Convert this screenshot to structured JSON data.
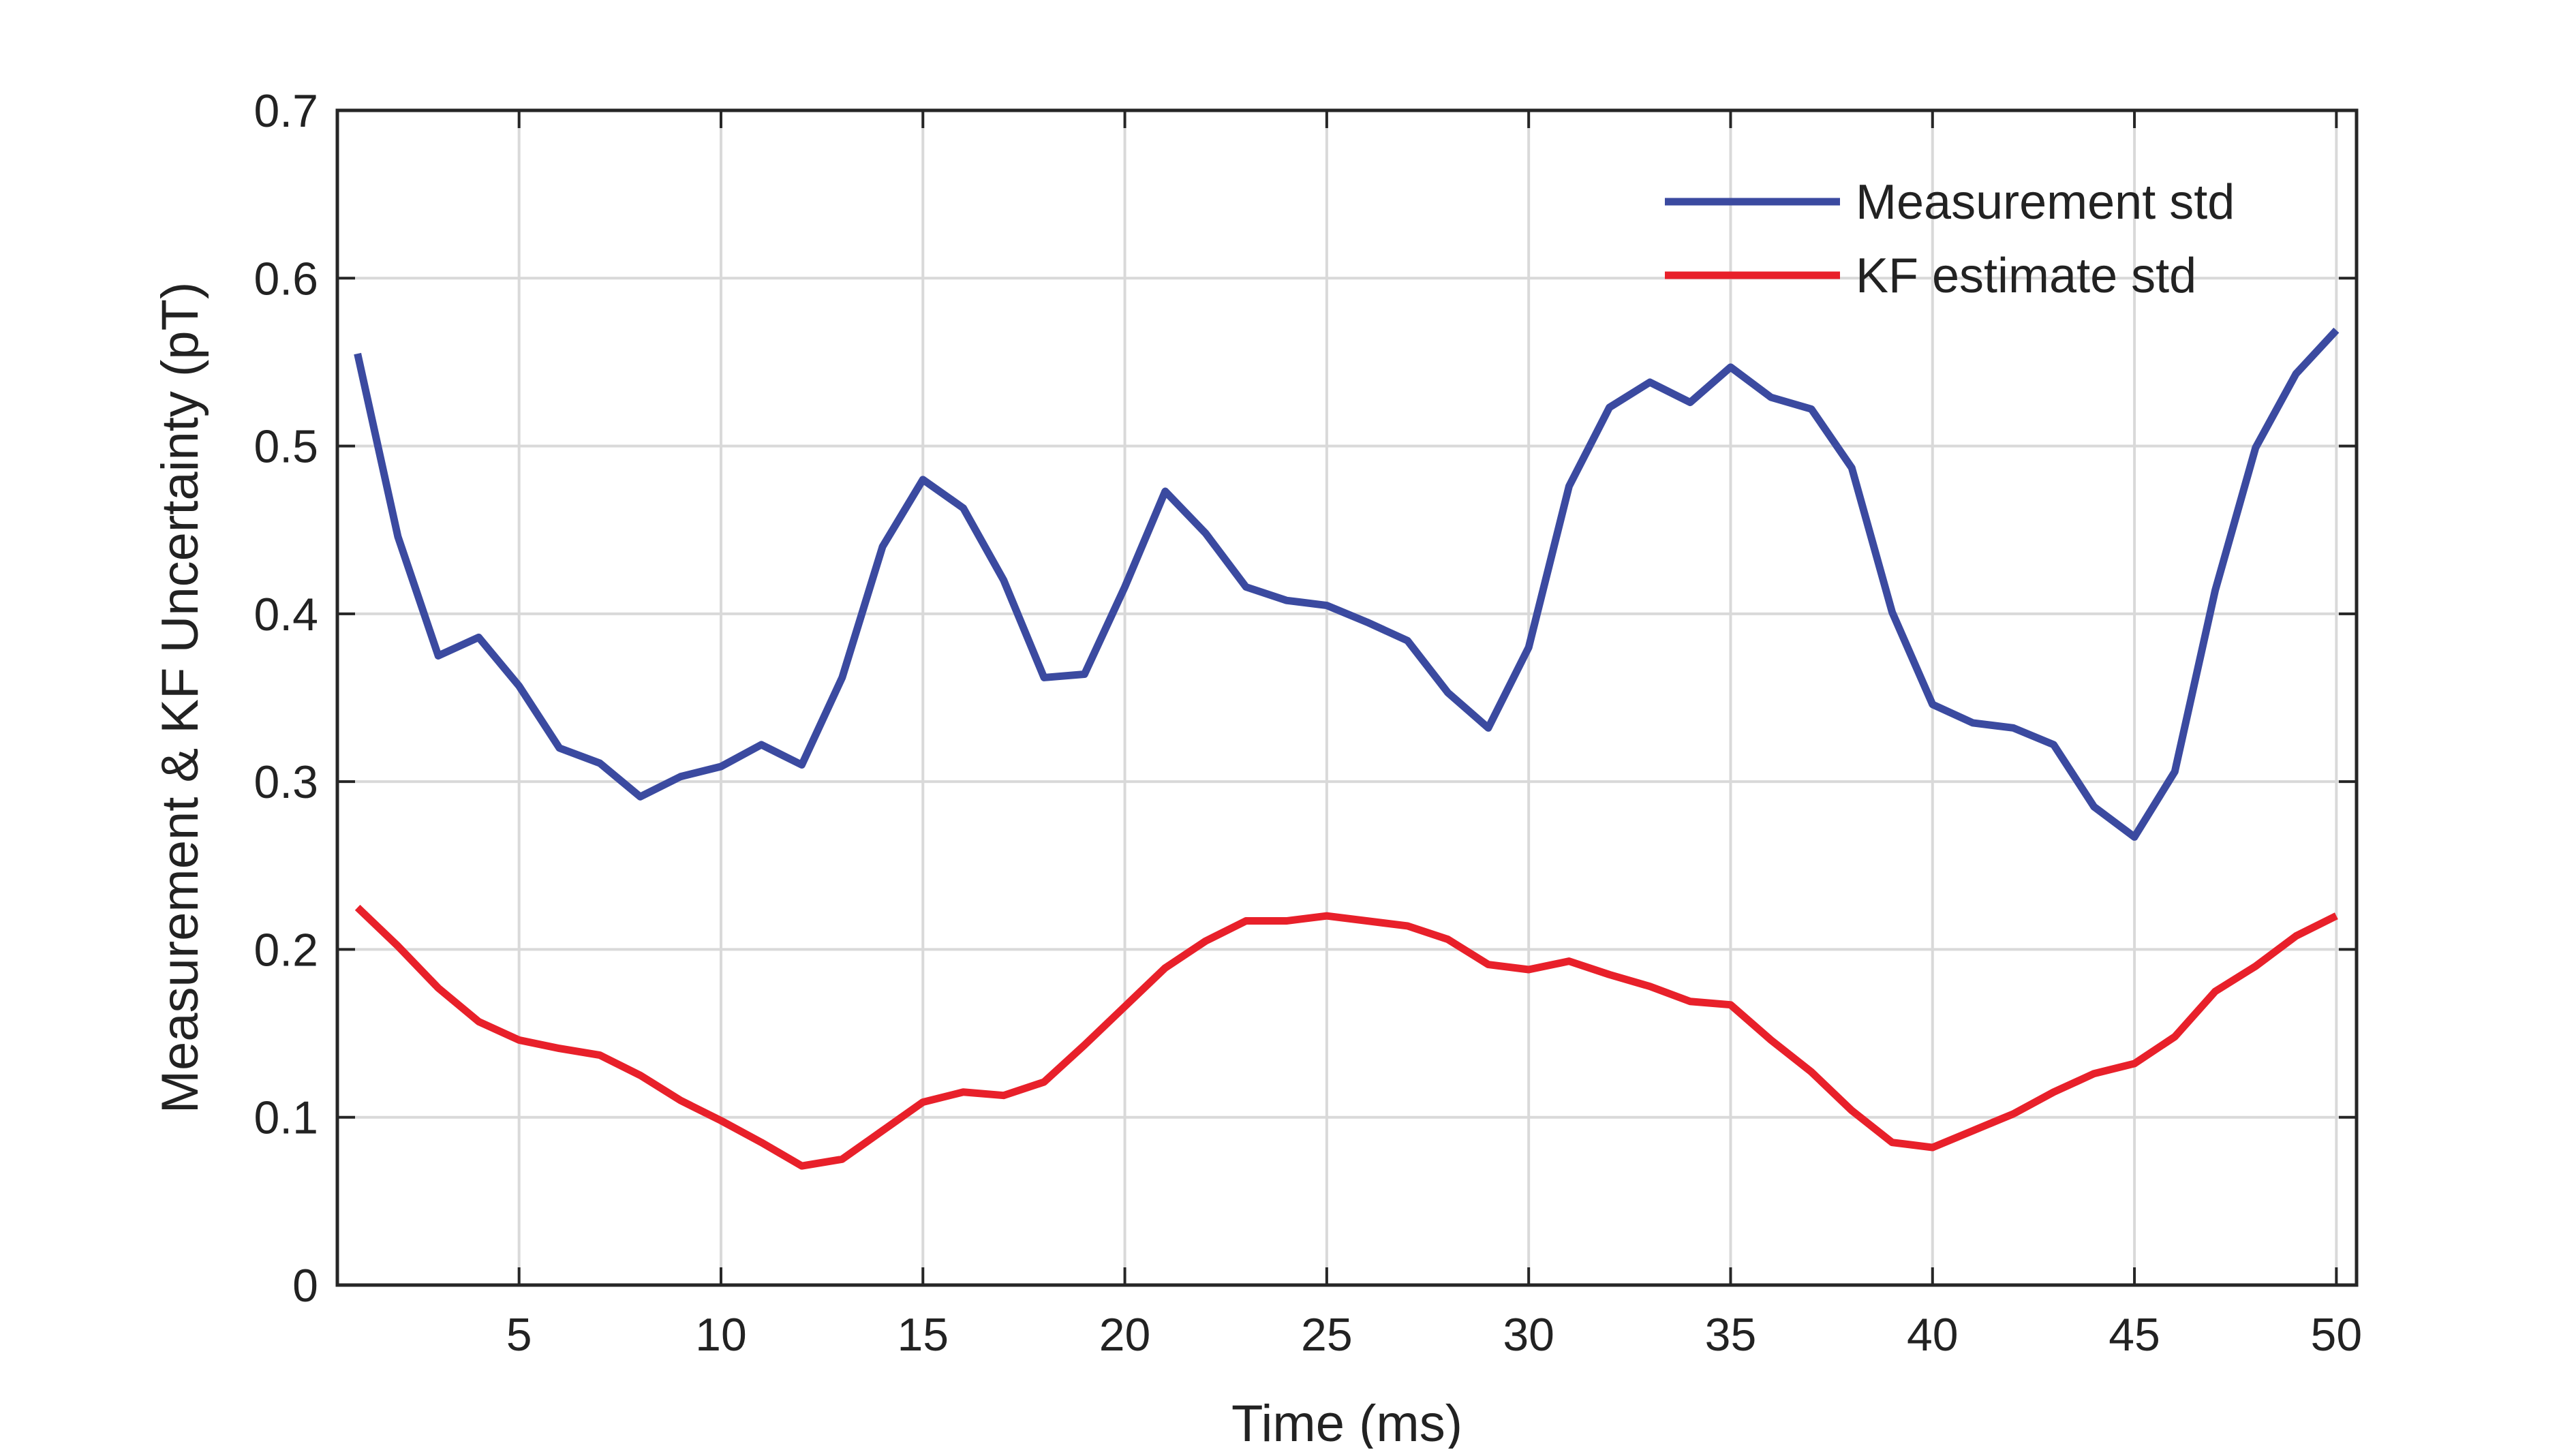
{
  "chart_data": {
    "type": "line",
    "title": "",
    "xlabel": "Time (ms)",
    "ylabel": "Measurement & KF Uncertainty  (pT)",
    "xlim": [
      0.5,
      50.5
    ],
    "ylim": [
      0,
      0.7
    ],
    "xticks": [
      5,
      10,
      15,
      20,
      25,
      30,
      35,
      40,
      45,
      50
    ],
    "xtick_labels": [
      "5",
      "10",
      "15",
      "20",
      "25",
      "30",
      "35",
      "40",
      "45",
      "50"
    ],
    "yticks": [
      0,
      0.1,
      0.2,
      0.3,
      0.4,
      0.5,
      0.6,
      0.7
    ],
    "ytick_labels": [
      "0",
      "0.1",
      "0.2",
      "0.3",
      "0.4",
      "0.5",
      "0.6",
      "0.7"
    ],
    "grid": true,
    "legend_position": "top-right",
    "x": [
      1,
      2,
      3,
      4,
      5,
      6,
      7,
      8,
      9,
      10,
      11,
      12,
      13,
      14,
      15,
      16,
      17,
      18,
      19,
      20,
      21,
      22,
      23,
      24,
      25,
      26,
      27,
      28,
      29,
      30,
      31,
      32,
      33,
      34,
      35,
      36,
      37,
      38,
      39,
      40,
      41,
      42,
      43,
      44,
      45,
      46,
      47,
      48,
      49,
      50
    ],
    "series": [
      {
        "name": "Measurement std",
        "color": "#3b4aa0",
        "values": [
          0.555,
          0.446,
          0.375,
          0.386,
          0.357,
          0.32,
          0.311,
          0.291,
          0.303,
          0.309,
          0.322,
          0.31,
          0.362,
          0.44,
          0.48,
          0.463,
          0.42,
          0.362,
          0.364,
          0.416,
          0.473,
          0.448,
          0.416,
          0.408,
          0.405,
          0.395,
          0.384,
          0.353,
          0.332,
          0.38,
          0.476,
          0.523,
          0.538,
          0.526,
          0.547,
          0.529,
          0.522,
          0.487,
          0.401,
          0.346,
          0.335,
          0.332,
          0.322,
          0.285,
          0.267,
          0.306,
          0.414,
          0.499,
          0.543,
          0.569
        ]
      },
      {
        "name": "KF estimate std",
        "color": "#e8202a",
        "values": [
          0.225,
          0.202,
          0.177,
          0.157,
          0.146,
          0.141,
          0.137,
          0.125,
          0.11,
          0.098,
          0.085,
          0.071,
          0.075,
          0.092,
          0.109,
          0.115,
          0.113,
          0.121,
          0.143,
          0.166,
          0.189,
          0.205,
          0.217,
          0.217,
          0.22,
          0.217,
          0.214,
          0.206,
          0.191,
          0.188,
          0.193,
          0.185,
          0.178,
          0.169,
          0.167,
          0.146,
          0.127,
          0.104,
          0.085,
          0.082,
          0.092,
          0.102,
          0.115,
          0.126,
          0.132,
          0.148,
          0.175,
          0.19,
          0.208,
          0.22
        ]
      }
    ]
  }
}
